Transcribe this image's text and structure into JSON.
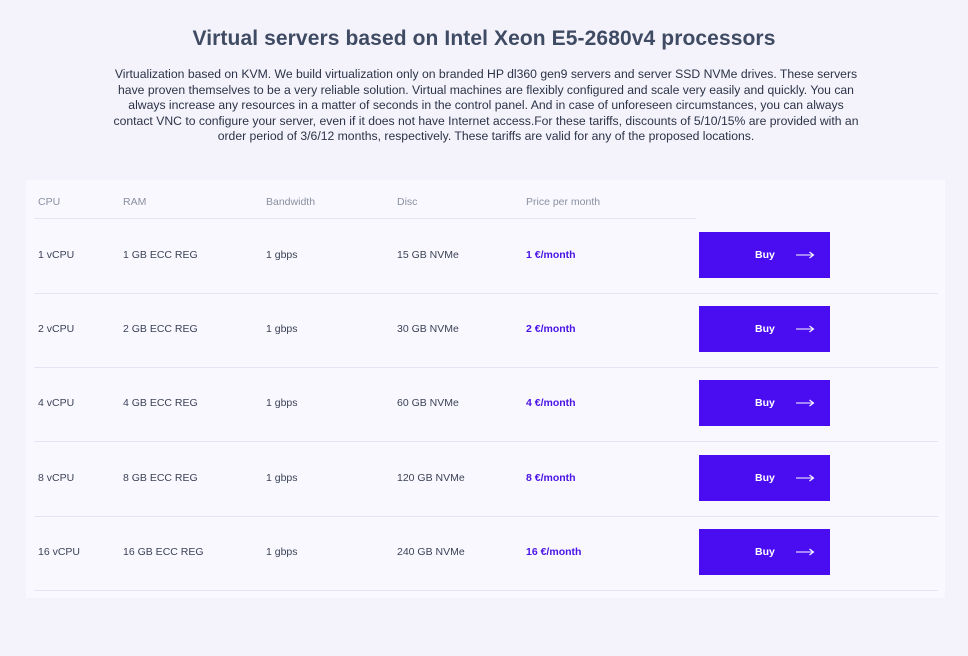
{
  "header": {
    "title": "Virtual servers based on Intel Xeon E5-2680v4 processors",
    "description": "Virtualization based on KVM. We build virtualization only on branded HP dl360 gen9 servers and server SSD NVMe drives. These servers have proven themselves to be a very reliable solution. Virtual machines are flexibly configured and scale very easily and quickly. You can always increase any resources in a matter of seconds in the control panel. And in case of unforeseen circumstances, you can always contact VNC to configure your server, even if it does not have Internet access.For these tariffs, discounts of 5/10/15% are provided with an order period of 3/6/12 months, respectively. These tariffs are valid for any of the proposed locations."
  },
  "table": {
    "columns": {
      "cpu": "CPU",
      "ram": "RAM",
      "bandwidth": "Bandwidth",
      "disc": "Disc",
      "price": "Price per month"
    },
    "rows": [
      {
        "cpu": "1 vCPU",
        "ram": "1 GB ECC REG",
        "bandwidth": "1 gbps",
        "disc": "15 GB NVMe",
        "price": "1 €/month",
        "button": "Buy"
      },
      {
        "cpu": "2 vCPU",
        "ram": "2 GB ECC REG",
        "bandwidth": "1 gbps",
        "disc": "30 GB NVMe",
        "price": "2 €/month",
        "button": "Buy"
      },
      {
        "cpu": "4 vCPU",
        "ram": "4 GB ECC REG",
        "bandwidth": "1 gbps",
        "disc": "60 GB NVMe",
        "price": "4 €/month",
        "button": "Buy"
      },
      {
        "cpu": "8 vCPU",
        "ram": "8 GB ECC REG",
        "bandwidth": "1 gbps",
        "disc": "120 GB NVMe",
        "price": "8 €/month",
        "button": "Buy"
      },
      {
        "cpu": "16 vCPU",
        "ram": "16 GB ECC REG",
        "bandwidth": "1 gbps",
        "disc": "240 GB NVMe",
        "price": "16 €/month",
        "button": "Buy"
      }
    ]
  },
  "icons": {
    "buy_arrow": "arrow-right-icon"
  },
  "colors": {
    "accent": "#4a0df2",
    "price_text": "#4a14e6",
    "background": "#f4f3fc",
    "card": "#f9f8ff"
  }
}
